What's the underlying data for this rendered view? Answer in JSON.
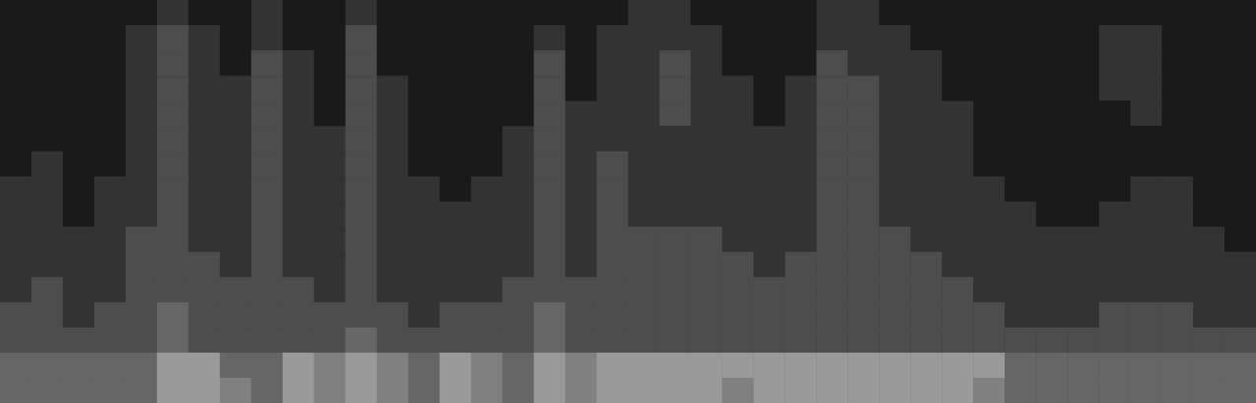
{
  "chart_data": {
    "type": "heatmap",
    "tick_labels": false,
    "zlim": [
      0,
      10
    ],
    "cells": [
      [
        1,
        1,
        1,
        1,
        1,
        2,
        1,
        1,
        2,
        1,
        1,
        2,
        1,
        1,
        1,
        1,
        1,
        1,
        1,
        1,
        2,
        2,
        1,
        1,
        1,
        1,
        2,
        2,
        1,
        1,
        1,
        1,
        1,
        1,
        1,
        1,
        1,
        1,
        1,
        1
      ],
      [
        1,
        1,
        1,
        1,
        2,
        3,
        2,
        1,
        2,
        1,
        1,
        3,
        1,
        1,
        1,
        1,
        1,
        2,
        1,
        2,
        2,
        2,
        2,
        1,
        1,
        1,
        2,
        2,
        2,
        1,
        1,
        1,
        1,
        1,
        1,
        2,
        2,
        1,
        1,
        1
      ],
      [
        1,
        1,
        1,
        1,
        2,
        3,
        2,
        1,
        3,
        2,
        1,
        3,
        1,
        1,
        1,
        1,
        1,
        3,
        1,
        2,
        2,
        3,
        2,
        1,
        1,
        1,
        3,
        2,
        2,
        2,
        1,
        1,
        1,
        1,
        1,
        2,
        2,
        1,
        1,
        1
      ],
      [
        1,
        1,
        1,
        1,
        2,
        3,
        2,
        2,
        3,
        2,
        1,
        3,
        2,
        1,
        1,
        1,
        1,
        3,
        1,
        2,
        2,
        3,
        2,
        2,
        1,
        2,
        3,
        3,
        2,
        2,
        1,
        1,
        1,
        1,
        1,
        2,
        2,
        1,
        1,
        1
      ],
      [
        1,
        1,
        1,
        1,
        2,
        3,
        2,
        2,
        3,
        2,
        1,
        3,
        2,
        1,
        1,
        1,
        1,
        3,
        2,
        2,
        2,
        3,
        2,
        2,
        1,
        2,
        3,
        3,
        2,
        2,
        2,
        1,
        1,
        1,
        1,
        1,
        2,
        1,
        1,
        1
      ],
      [
        1,
        1,
        1,
        1,
        2,
        3,
        2,
        2,
        3,
        2,
        2,
        3,
        2,
        1,
        1,
        1,
        2,
        3,
        2,
        2,
        2,
        2,
        2,
        2,
        2,
        2,
        3,
        3,
        2,
        2,
        2,
        1,
        1,
        1,
        1,
        1,
        1,
        1,
        1,
        1
      ],
      [
        1,
        2,
        1,
        1,
        2,
        3,
        2,
        2,
        3,
        2,
        2,
        3,
        2,
        1,
        1,
        1,
        2,
        3,
        2,
        3,
        2,
        2,
        2,
        2,
        2,
        2,
        3,
        3,
        2,
        2,
        2,
        1,
        1,
        1,
        1,
        1,
        1,
        1,
        1,
        1
      ],
      [
        2,
        2,
        1,
        2,
        2,
        3,
        2,
        2,
        3,
        2,
        2,
        3,
        2,
        2,
        1,
        2,
        2,
        3,
        2,
        3,
        2,
        2,
        2,
        2,
        2,
        2,
        3,
        3,
        2,
        2,
        2,
        2,
        1,
        1,
        1,
        1,
        2,
        2,
        1,
        1
      ],
      [
        2,
        2,
        1,
        2,
        2,
        3,
        2,
        2,
        3,
        2,
        2,
        3,
        2,
        2,
        2,
        2,
        2,
        3,
        2,
        3,
        2,
        2,
        2,
        2,
        2,
        2,
        3,
        3,
        2,
        2,
        2,
        2,
        2,
        1,
        1,
        2,
        2,
        2,
        1,
        1
      ],
      [
        2,
        2,
        2,
        2,
        3,
        3,
        2,
        2,
        3,
        2,
        2,
        3,
        2,
        2,
        2,
        2,
        2,
        3,
        2,
        3,
        3,
        3,
        3,
        2,
        2,
        2,
        3,
        3,
        3,
        2,
        2,
        2,
        2,
        2,
        2,
        2,
        2,
        2,
        2,
        1
      ],
      [
        2,
        2,
        2,
        2,
        3,
        3,
        3,
        2,
        3,
        2,
        2,
        3,
        2,
        2,
        2,
        2,
        2,
        3,
        2,
        3,
        3,
        3,
        3,
        3,
        2,
        3,
        3,
        3,
        3,
        3,
        2,
        2,
        2,
        2,
        2,
        2,
        2,
        2,
        2,
        2
      ],
      [
        2,
        3,
        2,
        2,
        3,
        3,
        3,
        3,
        3,
        3,
        2,
        3,
        2,
        2,
        2,
        2,
        3,
        3,
        3,
        3,
        3,
        3,
        3,
        3,
        3,
        3,
        3,
        3,
        3,
        3,
        3,
        2,
        2,
        2,
        2,
        2,
        2,
        2,
        2,
        2
      ],
      [
        3,
        3,
        2,
        3,
        3,
        4,
        3,
        3,
        3,
        3,
        3,
        3,
        3,
        2,
        3,
        3,
        3,
        4,
        3,
        3,
        3,
        3,
        3,
        3,
        3,
        3,
        3,
        3,
        3,
        3,
        3,
        3,
        2,
        2,
        2,
        3,
        3,
        3,
        2,
        2
      ],
      [
        3,
        3,
        3,
        3,
        3,
        4,
        3,
        3,
        3,
        3,
        3,
        4,
        3,
        3,
        3,
        3,
        3,
        4,
        3,
        3,
        3,
        3,
        3,
        3,
        3,
        3,
        3,
        3,
        3,
        3,
        3,
        3,
        3,
        3,
        3,
        3,
        3,
        3,
        3,
        3
      ],
      [
        4,
        4,
        4,
        4,
        4,
        6,
        6,
        4,
        4,
        6,
        5,
        6,
        5,
        4,
        6,
        5,
        4,
        6,
        5,
        6,
        6,
        6,
        6,
        6,
        6,
        6,
        6,
        6,
        6,
        6,
        6,
        6,
        4,
        4,
        4,
        4,
        4,
        4,
        4,
        4
      ],
      [
        4,
        4,
        4,
        4,
        4,
        6,
        6,
        5,
        4,
        6,
        5,
        6,
        5,
        4,
        6,
        5,
        4,
        6,
        5,
        6,
        6,
        6,
        6,
        5,
        6,
        6,
        6,
        6,
        6,
        6,
        6,
        5,
        4,
        4,
        4,
        4,
        4,
        4,
        4,
        4
      ]
    ]
  }
}
